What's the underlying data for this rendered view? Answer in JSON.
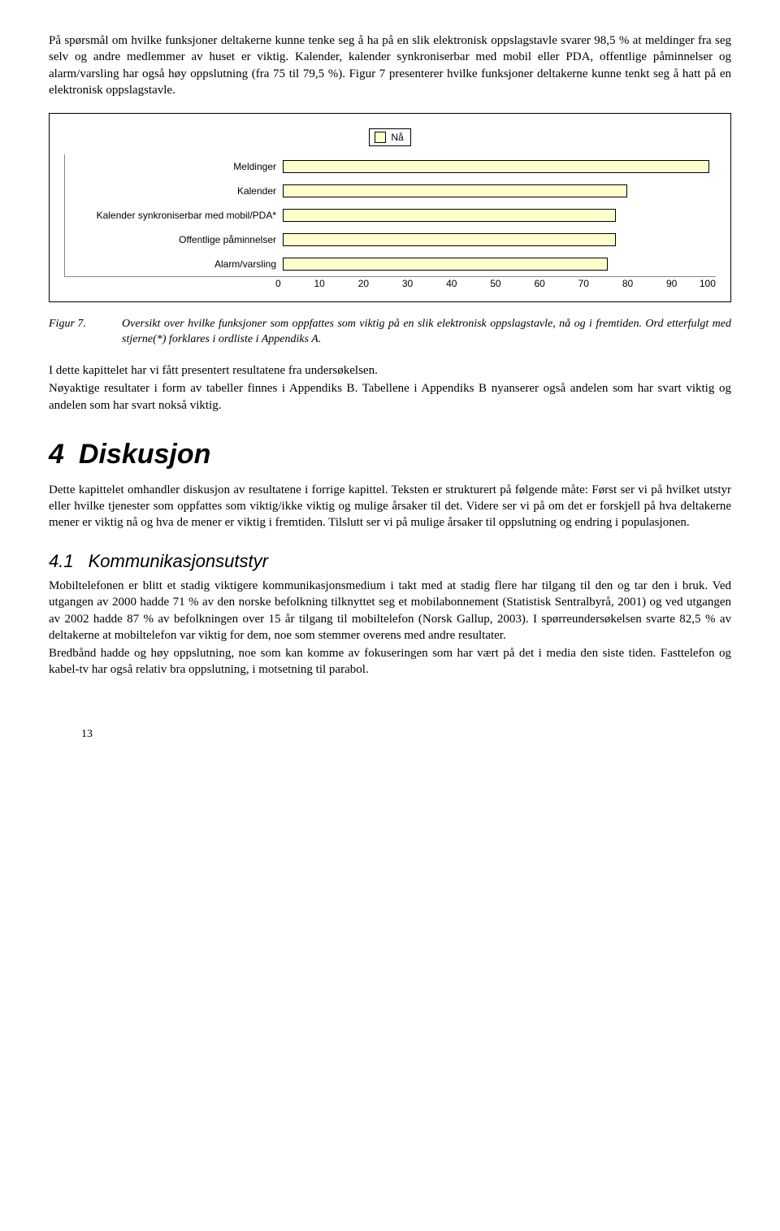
{
  "intro": {
    "p1": "På spørsmål om hvilke funksjoner deltakerne kunne tenke seg å ha på en slik elektronisk oppslagstavle svarer 98,5 % at meldinger fra seg selv og andre medlemmer av huset er viktig. Kalender, kalender synkroniserbar med mobil eller PDA, offentlige påminnelser og alarm/varsling har også høy oppslutning (fra 75 til 79,5 %). Figur 7 presenterer hvilke funksjoner deltakerne kunne tenkt seg å hatt på en elektronisk oppslagstavle."
  },
  "chart": {
    "type": "bar",
    "legend_label": "Nå",
    "bar_color": "#ffffcc",
    "bar_border": "#000000",
    "grid_color": "#888888",
    "background_color": "#ffffff",
    "label_fontsize": 12,
    "xlim": [
      0,
      100
    ],
    "xtick_step": 10,
    "xticks": [
      "0",
      "10",
      "20",
      "30",
      "40",
      "50",
      "60",
      "70",
      "80",
      "90",
      "100"
    ],
    "bars": [
      {
        "label": "Meldinger",
        "value": 98.5
      },
      {
        "label": "Kalender",
        "value": 79.5
      },
      {
        "label": "Kalender synkroniserbar med mobil/PDA*",
        "value": 77
      },
      {
        "label": "Offentlige påminnelser",
        "value": 77
      },
      {
        "label": "Alarm/varsling",
        "value": 75
      }
    ]
  },
  "figure7": {
    "label": "Figur 7.",
    "text": "Oversikt over hvilke funksjoner som oppfattes som viktig på en slik elektronisk oppslagstavle, nå og i fremtiden. Ord etterfulgt med stjerne(*) forklares i ordliste i Appendiks A."
  },
  "mid": {
    "p1": "I dette kapittelet har vi fått presentert resultatene fra undersøkelsen.",
    "p2": "Nøyaktige resultater i form av tabeller finnes i Appendiks B. Tabellene i Appendiks B nyanserer også andelen som har svart viktig og andelen som har svart nokså viktig."
  },
  "section4": {
    "num": "4",
    "title": "Diskusjon",
    "p1": "Dette kapittelet omhandler diskusjon av resultatene i forrige kapittel. Teksten er strukturert på følgende måte: Først ser vi på hvilket utstyr eller hvilke tjenester som oppfattes som viktig/ikke viktig og mulige årsaker til det. Videre ser vi på om det er forskjell på hva deltakerne mener er viktig nå og hva de mener er viktig i fremtiden. Tilslutt ser vi på mulige årsaker til oppslutning og endring i populasjonen."
  },
  "section41": {
    "num": "4.1",
    "title": "Kommunikasjonsutstyr",
    "p1": "Mobiltelefonen er blitt et stadig viktigere kommunikasjonsmedium i takt med at stadig flere har tilgang til den og tar den i bruk. Ved utgangen av 2000 hadde 71 % av den norske befolkning tilknyttet seg et mobilabonnement (Statistisk Sentralbyrå, 2001) og ved utgangen av 2002 hadde 87 % av befolkningen over 15 år tilgang til mobiltelefon (Norsk Gallup, 2003). I spørreundersøkelsen svarte 82,5 % av deltakerne at mobiltelefon var viktig for dem, noe som stemmer overens med andre resultater.",
    "p2": "Bredbånd hadde og høy oppslutning, noe som kan komme av fokuseringen som har vært på det i media den siste tiden. Fasttelefon og kabel-tv har også relativ bra oppslutning, i motsetning til parabol."
  },
  "page_number": "13"
}
